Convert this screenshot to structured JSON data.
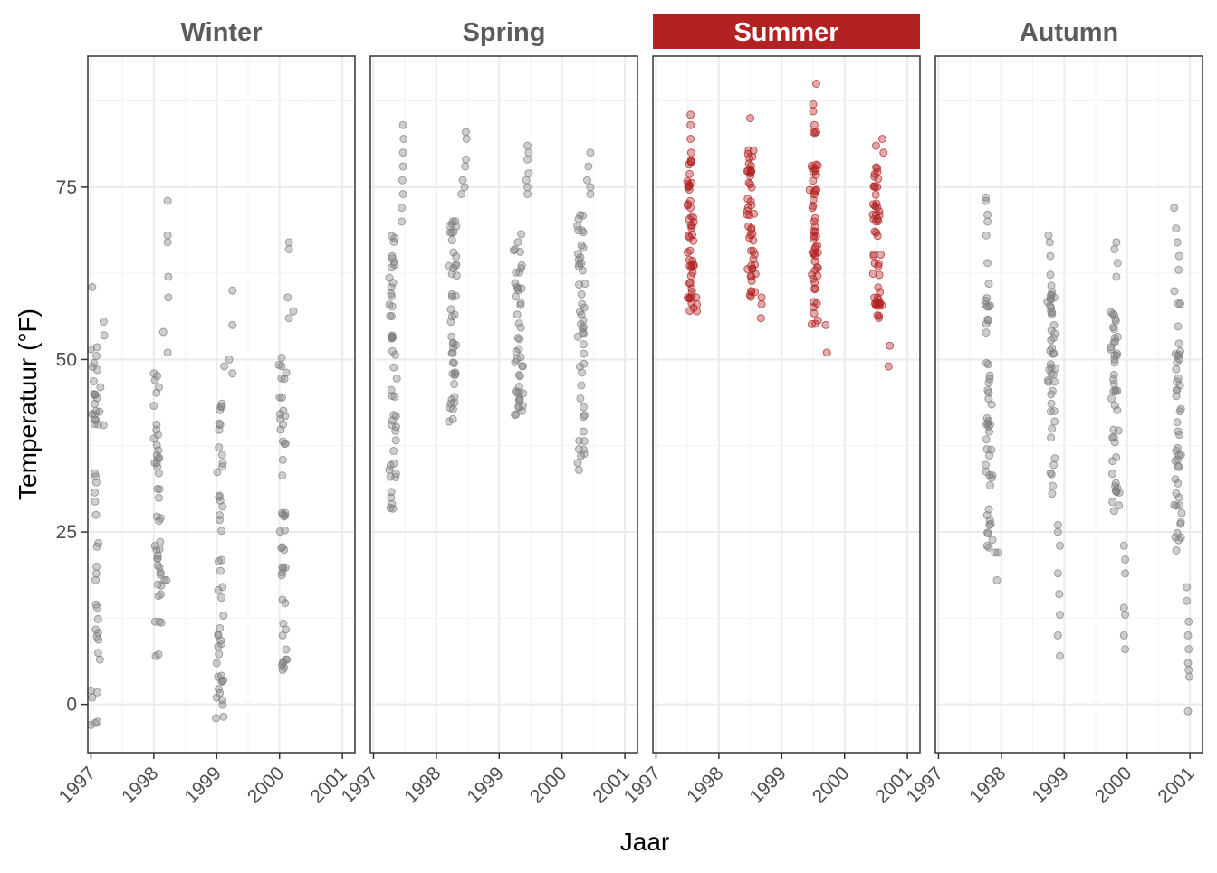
{
  "chart_data": {
    "type": "scatter",
    "xlabel": "Jaar",
    "ylabel": "Temperatuur (°F)",
    "xlim": [
      1996.95,
      2001.2
    ],
    "ylim": [
      -7,
      94
    ],
    "x_ticks": [
      1997,
      1998,
      1999,
      2000,
      2001
    ],
    "x_tick_labels": [
      "1997",
      "1998",
      "1999",
      "2000",
      "2001"
    ],
    "y_ticks": [
      0,
      25,
      50,
      75
    ],
    "y_tick_labels": [
      "0",
      "25",
      "50",
      "75"
    ],
    "grid": true,
    "highlight_panel": "Summer",
    "colors": {
      "point": "#7f7f7f",
      "highlight": "#b22222",
      "strip": "#b22222",
      "grid": "#ebebeb",
      "border": "#333333"
    },
    "panels": [
      {
        "label": "Winter",
        "clusters": [
          {
            "x": 1997.03,
            "ymin": -3,
            "ymax": 52,
            "n": 40,
            "lead": 0.04,
            "trail": 0.22,
            "pts": [
              [
                1997.02,
                60.5
              ],
              [
                1997.2,
                55.5
              ],
              [
                1997.21,
                53.5
              ],
              [
                1997.0,
                51.5
              ],
              [
                1997.1,
                48.5
              ],
              [
                1997.15,
                46
              ],
              [
                1997.2,
                40.5
              ],
              [
                1997.05,
                45
              ],
              [
                1997.0,
                2
              ],
              [
                1997.02,
                1
              ],
              [
                1997.0,
                -3
              ]
            ]
          },
          {
            "x": 1998.0,
            "ymin": 7,
            "ymax": 48,
            "n": 42,
            "lead": 0.02,
            "trail": 0.25,
            "pts": [
              [
                1998.22,
                73
              ],
              [
                1998.22,
                68
              ],
              [
                1998.22,
                67
              ],
              [
                1998.23,
                62
              ],
              [
                1998.23,
                59
              ],
              [
                1998.15,
                54
              ],
              [
                1998.22,
                51
              ],
              [
                1998.0,
                48
              ],
              [
                1998.17,
                18
              ],
              [
                1998.2,
                18
              ],
              [
                1998.02,
                12
              ],
              [
                1998.03,
                7
              ]
            ]
          },
          {
            "x": 1999.0,
            "ymin": -2,
            "ymax": 44,
            "n": 42,
            "lead": 0.02,
            "trail": 0.25,
            "pts": [
              [
                1999.25,
                60
              ],
              [
                1999.25,
                55
              ],
              [
                1999.2,
                50
              ],
              [
                1999.12,
                49
              ],
              [
                1999.25,
                48
              ],
              [
                1999.0,
                6
              ],
              [
                1999.02,
                4
              ],
              [
                1999.0,
                1
              ],
              [
                1998.99,
                -2
              ]
            ]
          },
          {
            "x": 2000.0,
            "ymin": 5,
            "ymax": 52,
            "n": 44,
            "lead": 0.02,
            "trail": 0.25,
            "pts": [
              [
                2000.15,
                67
              ],
              [
                2000.15,
                66
              ],
              [
                2000.13,
                59
              ],
              [
                2000.22,
                57
              ],
              [
                2000.15,
                56
              ],
              [
                2000.05,
                10
              ],
              [
                2000.05,
                6
              ],
              [
                2000.05,
                5
              ]
            ]
          }
        ]
      },
      {
        "label": "Spring",
        "clusters": [
          {
            "x": 1997.25,
            "ymin": 28,
            "ymax": 68,
            "n": 44,
            "lead": 0.03,
            "trail": 0.22,
            "pts": [
              [
                1997.47,
                84
              ],
              [
                1997.48,
                82
              ],
              [
                1997.47,
                80
              ],
              [
                1997.47,
                78
              ],
              [
                1997.46,
                76
              ],
              [
                1997.47,
                74
              ],
              [
                1997.45,
                72
              ],
              [
                1997.45,
                70
              ],
              [
                1997.25,
                34
              ],
              [
                1997.27,
                33
              ],
              [
                1997.28,
                30
              ],
              [
                1997.27,
                28.5
              ]
            ]
          },
          {
            "x": 1998.2,
            "ymin": 41,
            "ymax": 72,
            "n": 44,
            "lead": 0.03,
            "trail": 0.3,
            "pts": [
              [
                1998.47,
                83
              ],
              [
                1998.48,
                82
              ],
              [
                1998.47,
                79
              ],
              [
                1998.46,
                78
              ],
              [
                1998.42,
                76
              ],
              [
                1998.45,
                75
              ],
              [
                1998.4,
                74
              ],
              [
                1998.2,
                41
              ],
              [
                1998.22,
                43
              ]
            ]
          },
          {
            "x": 1999.25,
            "ymin": 42,
            "ymax": 70,
            "n": 44,
            "lead": 0.03,
            "trail": 0.25,
            "pts": [
              [
                1999.45,
                81
              ],
              [
                1999.47,
                80
              ],
              [
                1999.45,
                79
              ],
              [
                1999.47,
                77
              ],
              [
                1999.43,
                76
              ],
              [
                1999.45,
                75
              ],
              [
                1999.45,
                74
              ],
              [
                1999.25,
                42
              ]
            ]
          },
          {
            "x": 2000.25,
            "ymin": 34,
            "ymax": 72,
            "n": 46,
            "lead": 0.03,
            "trail": 0.25,
            "pts": [
              [
                2000.45,
                80
              ],
              [
                2000.42,
                78
              ],
              [
                2000.4,
                76
              ],
              [
                2000.45,
                75
              ],
              [
                2000.45,
                74
              ],
              [
                2000.27,
                34
              ],
              [
                2000.25,
                35
              ],
              [
                2000.27,
                37
              ]
            ]
          }
        ]
      },
      {
        "label": "Summer",
        "clusters": [
          {
            "x": 1997.5,
            "ymin": 57,
            "ymax": 80,
            "n": 50,
            "lead": 0.03,
            "trail": 0.2,
            "pts": [
              [
                1997.55,
                85.5
              ],
              [
                1997.55,
                84
              ],
              [
                1997.55,
                82
              ],
              [
                1997.56,
                80
              ],
              [
                1997.65,
                57
              ],
              [
                1997.65,
                58
              ],
              [
                1997.64,
                59
              ]
            ]
          },
          {
            "x": 1998.45,
            "ymin": 59,
            "ymax": 81,
            "n": 50,
            "lead": 0.03,
            "trail": 0.25,
            "pts": [
              [
                1998.5,
                85
              ],
              [
                1998.68,
                59
              ],
              [
                1998.68,
                58
              ],
              [
                1998.67,
                56
              ]
            ]
          },
          {
            "x": 1999.45,
            "ymin": 55,
            "ymax": 83,
            "n": 52,
            "lead": 0.03,
            "trail": 0.27,
            "pts": [
              [
                1999.55,
                90
              ],
              [
                1999.5,
                87
              ],
              [
                1999.5,
                86
              ],
              [
                1999.52,
                84
              ],
              [
                1999.55,
                83
              ],
              [
                1999.7,
                55
              ],
              [
                1999.72,
                51
              ]
            ]
          },
          {
            "x": 2000.45,
            "ymin": 55,
            "ymax": 78,
            "n": 52,
            "lead": 0.03,
            "trail": 0.27,
            "pts": [
              [
                2000.5,
                81
              ],
              [
                2000.6,
                82
              ],
              [
                2000.62,
                80
              ],
              [
                2000.72,
                52
              ],
              [
                2000.7,
                49
              ]
            ]
          }
        ]
      },
      {
        "label": "Autumn",
        "clusters": [
          {
            "x": 1997.75,
            "ymin": 22,
            "ymax": 60,
            "n": 46,
            "lead": 0.03,
            "trail": 0.2,
            "pts": [
              [
                1997.75,
                73.5
              ],
              [
                1997.75,
                73
              ],
              [
                1997.78,
                71
              ],
              [
                1997.78,
                70
              ],
              [
                1997.76,
                68
              ],
              [
                1997.78,
                64
              ],
              [
                1997.8,
                61
              ],
              [
                1997.95,
                22
              ],
              [
                1997.93,
                18
              ],
              [
                1997.9,
                22
              ]
            ]
          },
          {
            "x": 1998.75,
            "ymin": 30,
            "ymax": 63,
            "n": 46,
            "lead": 0.03,
            "trail": 0.22,
            "pts": [
              [
                1998.75,
                68
              ],
              [
                1998.77,
                67
              ],
              [
                1998.78,
                65
              ],
              [
                1998.9,
                26
              ],
              [
                1998.9,
                25
              ],
              [
                1998.93,
                23
              ],
              [
                1998.9,
                19
              ],
              [
                1998.92,
                16
              ],
              [
                1998.93,
                13
              ],
              [
                1998.9,
                10
              ],
              [
                1998.93,
                7
              ]
            ]
          },
          {
            "x": 1999.75,
            "ymin": 28,
            "ymax": 60,
            "n": 46,
            "lead": 0.03,
            "trail": 0.22,
            "pts": [
              [
                1999.83,
                67
              ],
              [
                1999.8,
                66
              ],
              [
                1999.85,
                64
              ],
              [
                1999.83,
                62
              ],
              [
                1999.95,
                23
              ],
              [
                1999.97,
                21
              ],
              [
                1999.97,
                19
              ],
              [
                1999.95,
                14
              ],
              [
                1999.97,
                13
              ],
              [
                1999.95,
                10
              ],
              [
                1999.97,
                8
              ]
            ]
          },
          {
            "x": 2000.75,
            "ymin": 22,
            "ymax": 60,
            "n": 46,
            "lead": 0.03,
            "trail": 0.22,
            "pts": [
              [
                2000.75,
                72
              ],
              [
                2000.78,
                69
              ],
              [
                2000.8,
                67
              ],
              [
                2000.83,
                65
              ],
              [
                2000.82,
                63
              ],
              [
                2000.95,
                17
              ],
              [
                2000.95,
                15
              ],
              [
                2000.98,
                12
              ],
              [
                2000.97,
                10
              ],
              [
                2000.98,
                8
              ],
              [
                2000.97,
                6
              ],
              [
                2000.98,
                5
              ],
              [
                2000.99,
                4
              ],
              [
                2000.97,
                -1
              ]
            ]
          }
        ]
      }
    ]
  }
}
